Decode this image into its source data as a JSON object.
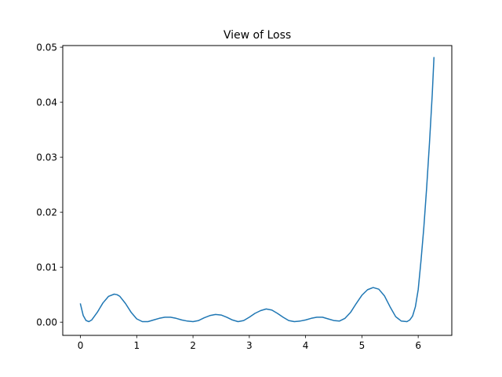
{
  "chart_data": {
    "type": "line",
    "title": "View of Loss",
    "xlabel": "",
    "ylabel": "",
    "xlim": [
      -0.314,
      6.597
    ],
    "ylim": [
      -0.0024,
      0.0503
    ],
    "xticks": [
      0,
      1,
      2,
      3,
      4,
      5,
      6
    ],
    "xtick_labels": [
      "0",
      "1",
      "2",
      "3",
      "4",
      "5",
      "6"
    ],
    "yticks": [
      0.0,
      0.01,
      0.02,
      0.03,
      0.04,
      0.05
    ],
    "ytick_labels": [
      "0.00",
      "0.01",
      "0.02",
      "0.03",
      "0.04",
      "0.05"
    ],
    "grid": false,
    "legend": "none",
    "series": [
      {
        "color": "#1f77b4",
        "x": [
          0.0,
          0.05,
          0.1,
          0.15,
          0.2,
          0.3,
          0.4,
          0.5,
          0.6,
          0.65,
          0.7,
          0.8,
          0.9,
          1.0,
          1.1,
          1.2,
          1.3,
          1.4,
          1.5,
          1.6,
          1.7,
          1.8,
          1.9,
          2.0,
          2.1,
          2.2,
          2.3,
          2.4,
          2.5,
          2.6,
          2.7,
          2.8,
          2.9,
          3.0,
          3.1,
          3.2,
          3.3,
          3.4,
          3.5,
          3.6,
          3.7,
          3.8,
          3.9,
          4.0,
          4.1,
          4.2,
          4.3,
          4.4,
          4.5,
          4.6,
          4.7,
          4.8,
          4.9,
          5.0,
          5.1,
          5.2,
          5.3,
          5.4,
          5.5,
          5.6,
          5.7,
          5.8,
          5.85,
          5.9,
          5.95,
          6.0,
          6.05,
          6.1,
          6.15,
          6.2,
          6.25,
          6.28
        ],
        "y": [
          0.0033,
          0.0012,
          0.0003,
          0.0001,
          0.0004,
          0.0018,
          0.0035,
          0.0047,
          0.0051,
          0.005,
          0.0047,
          0.0034,
          0.0018,
          0.0006,
          0.0001,
          0.0001,
          0.0004,
          0.0007,
          0.0009,
          0.0009,
          0.0007,
          0.0004,
          0.0002,
          0.0001,
          0.0003,
          0.0008,
          0.0012,
          0.0014,
          0.0013,
          0.0009,
          0.0004,
          0.0001,
          0.0003,
          0.0009,
          0.0016,
          0.0021,
          0.0024,
          0.0022,
          0.0016,
          0.0009,
          0.0003,
          0.0001,
          0.0002,
          0.0004,
          0.0007,
          0.0009,
          0.0009,
          0.0006,
          0.0003,
          0.0002,
          0.0007,
          0.0018,
          0.0034,
          0.0049,
          0.0059,
          0.0063,
          0.006,
          0.0048,
          0.0028,
          0.001,
          0.0002,
          0.0001,
          0.0004,
          0.0011,
          0.0028,
          0.0059,
          0.0112,
          0.0172,
          0.0244,
          0.0325,
          0.0415,
          0.0481
        ]
      }
    ]
  }
}
